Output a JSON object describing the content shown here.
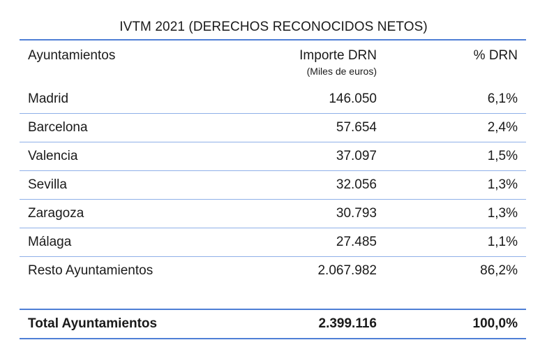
{
  "title": "IVTM 2021 (DERECHOS RECONOCIDOS NETOS)",
  "headers": {
    "col1": "Ayuntamientos",
    "col2": "Importe DRN",
    "col2_sub": "(Miles de euros)",
    "col3": "% DRN"
  },
  "rows": [
    {
      "name": "Madrid",
      "amount": "146.050",
      "pct": "6,1%"
    },
    {
      "name": "Barcelona",
      "amount": "57.654",
      "pct": "2,4%"
    },
    {
      "name": "Valencia",
      "amount": "37.097",
      "pct": "1,5%"
    },
    {
      "name": "Sevilla",
      "amount": "32.056",
      "pct": "1,3%"
    },
    {
      "name": "Zaragoza",
      "amount": "30.793",
      "pct": "1,3%"
    },
    {
      "name": "Málaga",
      "amount": "27.485",
      "pct": "1,1%"
    },
    {
      "name": "Resto Ayuntamientos",
      "amount": "2.067.982",
      "pct": "86,2%"
    }
  ],
  "total": {
    "name": "Total Ayuntamientos",
    "amount": "2.399.116",
    "pct": "100,0%"
  },
  "colors": {
    "rule": "#4f7fd6",
    "row_rule": "#8fb0e8"
  }
}
